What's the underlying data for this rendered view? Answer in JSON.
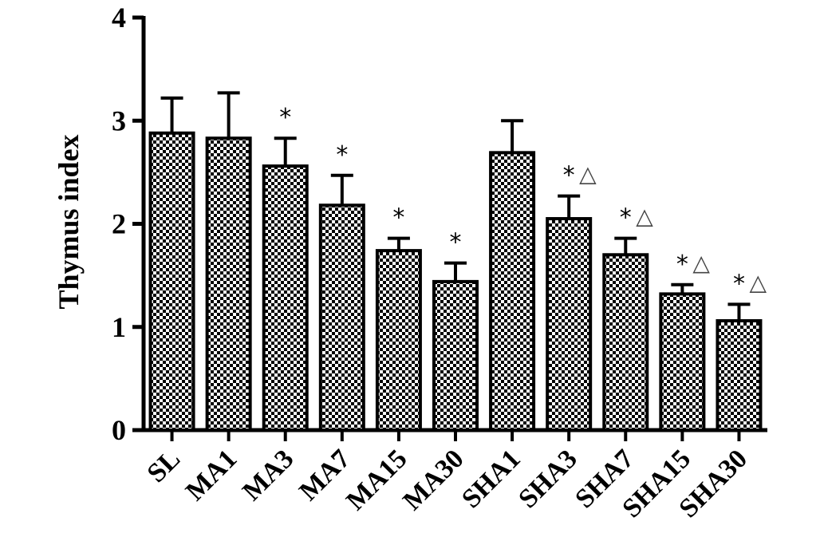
{
  "chart_data": {
    "type": "bar",
    "ylabel": "Thymus index",
    "xlabel": "",
    "ylim": [
      0,
      4
    ],
    "yticks": [
      "0",
      "1",
      "2",
      "3",
      "4"
    ],
    "categories": [
      "SL",
      "MA1",
      "MA3",
      "MA7",
      "MA15",
      "MA30",
      "SHA1",
      "SHA3",
      "SHA7",
      "SHA15",
      "SHA30"
    ],
    "values": [
      2.88,
      2.83,
      2.56,
      2.18,
      1.74,
      1.44,
      2.69,
      2.05,
      1.7,
      1.32,
      1.06
    ],
    "errors": [
      0.34,
      0.44,
      0.27,
      0.29,
      0.12,
      0.18,
      0.31,
      0.22,
      0.16,
      0.09,
      0.16
    ],
    "markers": [
      "",
      "",
      "*",
      "*",
      "*",
      "*",
      "",
      "*△",
      "*△",
      "*△",
      "*△"
    ],
    "bar_fill": "checkered black/white",
    "grid": false,
    "legend": "none"
  }
}
